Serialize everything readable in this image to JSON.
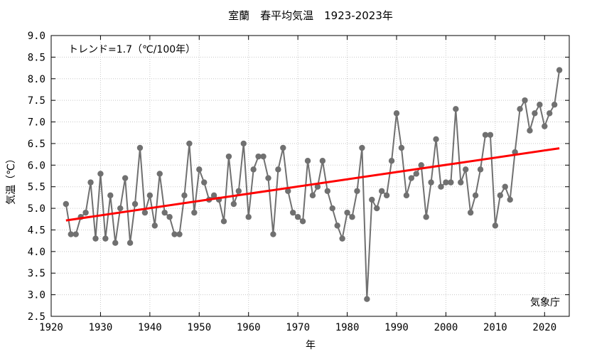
{
  "chart_data": {
    "type": "line",
    "title": "室蘭　春平均気温　1923-2023年",
    "xlabel": "年",
    "ylabel": "気温（℃）",
    "annotation": "トレンド=1.7（℃/100年）",
    "source": "気象庁",
    "xlim": [
      1920,
      2025
    ],
    "ylim": [
      2.5,
      9.0
    ],
    "xticks": [
      1920,
      1930,
      1940,
      1950,
      1960,
      1970,
      1980,
      1990,
      2000,
      2010,
      2020
    ],
    "yticks": [
      2.5,
      3.0,
      3.5,
      4.0,
      4.5,
      5.0,
      5.5,
      6.0,
      6.5,
      7.0,
      7.5,
      8.0,
      8.5,
      9.0
    ],
    "grid": true,
    "series": [
      {
        "color": "#707070",
        "x": [
          1923,
          1924,
          1925,
          1926,
          1927,
          1928,
          1929,
          1930,
          1931,
          1932,
          1933,
          1934,
          1935,
          1936,
          1937,
          1938,
          1939,
          1940,
          1941,
          1942,
          1943,
          1944,
          1945,
          1946,
          1947,
          1948,
          1949,
          1950,
          1951,
          1952,
          1953,
          1954,
          1955,
          1956,
          1957,
          1958,
          1959,
          1960,
          1961,
          1962,
          1963,
          1964,
          1965,
          1966,
          1967,
          1968,
          1969,
          1970,
          1971,
          1972,
          1973,
          1974,
          1975,
          1976,
          1977,
          1978,
          1979,
          1980,
          1981,
          1982,
          1983,
          1984,
          1985,
          1986,
          1987,
          1988,
          1989,
          1990,
          1991,
          1992,
          1993,
          1994,
          1995,
          1996,
          1997,
          1998,
          1999,
          2000,
          2001,
          2002,
          2003,
          2004,
          2005,
          2006,
          2007,
          2008,
          2009,
          2010,
          2011,
          2012,
          2013,
          2014,
          2015,
          2016,
          2017,
          2018,
          2019,
          2020,
          2021,
          2022,
          2023
        ],
        "values": [
          5.1,
          4.4,
          4.4,
          4.8,
          4.9,
          5.6,
          4.3,
          5.8,
          4.3,
          5.3,
          4.2,
          5.0,
          5.7,
          4.2,
          5.1,
          6.4,
          4.9,
          5.3,
          4.6,
          5.8,
          4.9,
          4.8,
          4.4,
          4.4,
          5.3,
          6.5,
          4.9,
          5.9,
          5.6,
          5.2,
          5.3,
          5.2,
          4.7,
          6.2,
          5.1,
          5.4,
          6.5,
          4.8,
          5.9,
          6.2,
          6.2,
          5.7,
          4.4,
          5.9,
          6.4,
          5.4,
          4.9,
          4.8,
          4.7,
          6.1,
          5.3,
          5.5,
          6.1,
          5.4,
          5.0,
          4.6,
          4.3,
          4.9,
          4.8,
          5.4,
          6.4,
          2.9,
          5.2,
          5.0,
          5.4,
          5.3,
          6.1,
          7.2,
          6.4,
          5.3,
          5.7,
          5.8,
          6.0,
          4.8,
          5.6,
          6.6,
          5.5,
          5.6,
          5.6,
          7.3,
          5.6,
          5.9,
          4.9,
          5.3,
          5.9,
          6.7,
          6.7,
          4.6,
          5.3,
          5.5,
          5.2,
          6.3,
          7.3,
          7.5,
          6.8,
          7.2,
          7.4,
          6.9,
          7.2,
          7.4,
          8.2
        ]
      },
      {
        "color": "#ff0000",
        "x": [
          1923,
          2023
        ],
        "values": [
          4.72,
          6.39
        ]
      }
    ]
  }
}
